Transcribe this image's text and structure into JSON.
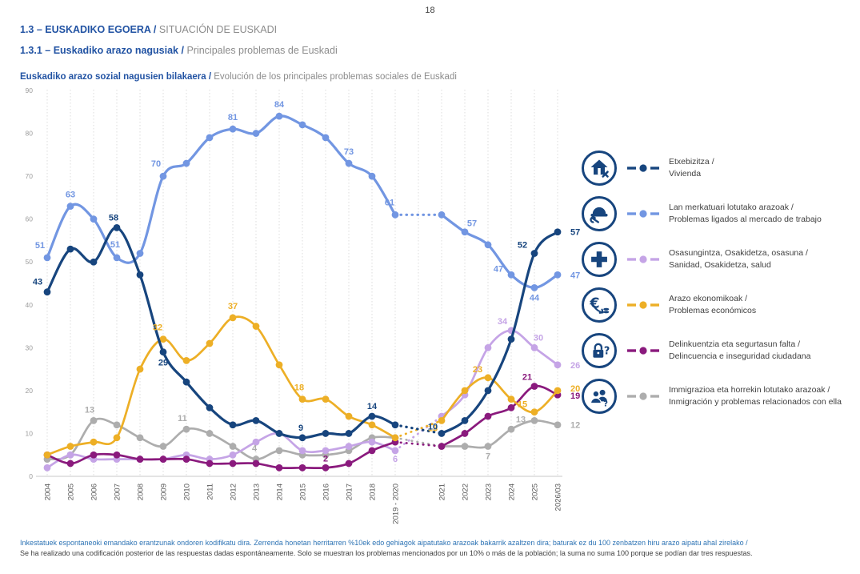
{
  "page": {
    "number": "18"
  },
  "headers": {
    "section_eu": "1.3 – EUSKADIKO EGOERA / ",
    "section_es": "SITUACIÓN DE EUSKADI",
    "subsection_eu": "1.3.1 – Euskadiko arazo nagusiak / ",
    "subsection_es": "Principales problemas de Euskadi",
    "chart_title_eu": "Euskadiko arazo sozial nagusien bilakaera / ",
    "chart_title_es": "Evolución de los principales problemas sociales de Euskadi"
  },
  "chart_data": {
    "type": "line",
    "title": "Euskadiko arazo sozial nagusien bilakaera / Evolución de los principales problemas sociales de Euskadi",
    "categories": [
      "2004",
      "2005",
      "2006",
      "2007",
      "2008",
      "2009",
      "2010",
      "2011",
      "2012",
      "2013",
      "2014",
      "2015",
      "2016",
      "2017",
      "2018",
      "2019 - 2020",
      "",
      "2021",
      "2022",
      "2023",
      "2024",
      "2025",
      "2026/03"
    ],
    "ylim": [
      0,
      90
    ],
    "ytick_step": 10,
    "grid": "vertical-dotted",
    "legend_position": "right",
    "note": "segment between 2019 - 2020 and 2021 drawn dotted",
    "series": [
      {
        "id": "immigrazioa",
        "color": "#ADADAD",
        "values": [
          4,
          5,
          13,
          12,
          9,
          7,
          11,
          10,
          7,
          4,
          6,
          5,
          5,
          6,
          9,
          9,
          null,
          7,
          7,
          7,
          11,
          13,
          12
        ],
        "labels": [
          {
            "i": 2,
            "t": "13",
            "dx": -5,
            "dy": -10
          },
          {
            "i": 6,
            "t": "11",
            "dx": -5,
            "dy": -10
          },
          {
            "i": 9,
            "t": "4",
            "dx": -2,
            "dy": -10
          },
          {
            "i": 19,
            "t": "7",
            "dx": 0,
            "dy": 16
          },
          {
            "i": 21,
            "t": "13",
            "dx": -17,
            "dy": 2
          },
          {
            "i": 22,
            "t": "12",
            "dx": 16,
            "dy": 4
          }
        ]
      },
      {
        "id": "osasungintza",
        "color": "#C5A4E6",
        "values": [
          2,
          5,
          4,
          4,
          4,
          4,
          5,
          4,
          5,
          8,
          10,
          6,
          6,
          7,
          8,
          6,
          null,
          14,
          19,
          30,
          34,
          30,
          26
        ],
        "labels": [
          {
            "i": 15,
            "t": "6",
            "dx": 0,
            "dy": 14
          },
          {
            "i": 20,
            "t": "34",
            "dx": -11,
            "dy": -8
          },
          {
            "i": 21,
            "t": "30",
            "dx": 5,
            "dy": -9
          },
          {
            "i": 22,
            "t": "26",
            "dx": 16,
            "dy": 4
          }
        ]
      },
      {
        "id": "delinkuentzia",
        "color": "#8A1A7D",
        "values": [
          5,
          3,
          5,
          5,
          4,
          4,
          4,
          3,
          3,
          3,
          2,
          2,
          2,
          3,
          6,
          8,
          null,
          7,
          10,
          14,
          16,
          21,
          19
        ],
        "labels": [
          {
            "i": 12,
            "t": "2",
            "dx": 0,
            "dy": -8
          },
          {
            "i": 21,
            "t": "21",
            "dx": -9,
            "dy": -8
          },
          {
            "i": 22,
            "t": "19",
            "dx": 16,
            "dy": 5
          }
        ]
      },
      {
        "id": "arazo-ekonomikoak",
        "color": "#EDAF26",
        "values": [
          5,
          7,
          8,
          9,
          25,
          32,
          27,
          31,
          37,
          35,
          26,
          18,
          18,
          14,
          12,
          9,
          null,
          13,
          20,
          23,
          18,
          15,
          20
        ],
        "labels": [
          {
            "i": 5,
            "t": "32",
            "dx": -7,
            "dy": -11
          },
          {
            "i": 8,
            "t": "37",
            "dx": 0,
            "dy": -11
          },
          {
            "i": 11,
            "t": "18",
            "dx": -4,
            "dy": -11
          },
          {
            "i": 17,
            "t": "13",
            "dx": -11,
            "dy": 13
          },
          {
            "i": 19,
            "t": "23",
            "dx": -13,
            "dy": -7
          },
          {
            "i": 21,
            "t": "15",
            "dx": -15,
            "dy": -6
          },
          {
            "i": 22,
            "t": "20",
            "dx": 16,
            "dy": 1
          }
        ]
      },
      {
        "id": "lan-merkatua",
        "color": "#7296E2",
        "values": [
          51,
          63,
          60,
          51,
          52,
          70,
          73,
          79,
          81,
          80,
          84,
          82,
          79,
          73,
          70,
          61,
          null,
          61,
          57,
          54,
          47,
          44,
          47
        ],
        "labels": [
          {
            "i": 0,
            "t": "51",
            "dx": -9,
            "dy": -12
          },
          {
            "i": 1,
            "t": "63",
            "dx": 0,
            "dy": -11
          },
          {
            "i": 3,
            "t": "51",
            "dx": -2,
            "dy": -13
          },
          {
            "i": 5,
            "t": "70",
            "dx": -9,
            "dy": -12
          },
          {
            "i": 8,
            "t": "81",
            "dx": 0,
            "dy": -11
          },
          {
            "i": 10,
            "t": "84",
            "dx": 0,
            "dy": -11
          },
          {
            "i": 13,
            "t": "73",
            "dx": 0,
            "dy": -11
          },
          {
            "i": 15,
            "t": "61",
            "dx": -7,
            "dy": -12
          },
          {
            "i": 18,
            "t": "57",
            "dx": 9,
            "dy": -7
          },
          {
            "i": 20,
            "t": "47",
            "dx": -16,
            "dy": -4
          },
          {
            "i": 21,
            "t": "44",
            "dx": 0,
            "dy": 16
          },
          {
            "i": 22,
            "t": "47",
            "dx": 16,
            "dy": 4
          }
        ]
      },
      {
        "id": "etxebizitza",
        "color": "#17457E",
        "values": [
          43,
          53,
          50,
          58,
          47,
          29,
          22,
          16,
          12,
          13,
          10,
          9,
          10,
          10,
          14,
          12,
          null,
          10,
          13,
          20,
          32,
          52,
          57
        ],
        "labels": [
          {
            "i": 0,
            "t": "43",
            "dx": -12,
            "dy": -9
          },
          {
            "i": 3,
            "t": "58",
            "dx": -4,
            "dy": -9
          },
          {
            "i": 5,
            "t": "29",
            "dx": 0,
            "dy": 17
          },
          {
            "i": 11,
            "t": "9",
            "dx": -2,
            "dy": -9
          },
          {
            "i": 14,
            "t": "14",
            "dx": 0,
            "dy": -9
          },
          {
            "i": 17,
            "t": "10",
            "dx": -11,
            "dy": -5
          },
          {
            "i": 21,
            "t": "52",
            "dx": -15,
            "dy": -7
          },
          {
            "i": 22,
            "t": "57",
            "dx": 16,
            "dy": 4
          }
        ]
      }
    ],
    "legend": [
      {
        "icon": "house-repair-icon",
        "line1": "Etxebizitza /",
        "line2": "Vivienda",
        "color": "#17457E"
      },
      {
        "icon": "helmet-wrench-icon",
        "line1": "Lan merkatuari lotutako arazoak /",
        "line2": "Problemas ligados al mercado de trabajo",
        "color": "#7296E2"
      },
      {
        "icon": "medical-cross-icon",
        "line1": "Osasungintza, Osakidetza, osasuna /",
        "line2": "Sanidad, Osakidetza, salud",
        "color": "#C5A4E6"
      },
      {
        "icon": "euro-decline-icon",
        "line1": "Arazo ekonomikoak /",
        "line2": "Problemas económicos",
        "color": "#EDAF26"
      },
      {
        "icon": "lock-question-icon",
        "line1": "Delinkuentzia eta segurtasun falta /",
        "line2": "Delincuencia e inseguridad ciudadana",
        "color": "#8A1A7D"
      },
      {
        "icon": "people-question-icon",
        "line1": "Immigrazioa eta horrekin lotutako arazoak /",
        "line2": "Inmigración y problemas relacionados con ella",
        "color": "#ADADAD"
      }
    ]
  },
  "footnotes": {
    "eu": "Inkestatuek espontaneoki emandako erantzunak ondoren kodifikatu dira. Zerrenda honetan herritarren %10ek edo gehiagok aipatutako arazoak bakarrik azaltzen dira; baturak ez du 100 zenbatzen hiru arazo aipatu ahal zirelako /",
    "es": "Se ha realizado una codificación posterior de las respuestas dadas espontáneamente. Solo se muestran los problemas mencionados por un 10% o más de la población; la suma no suma 100 porque se podían dar tres respuestas."
  }
}
